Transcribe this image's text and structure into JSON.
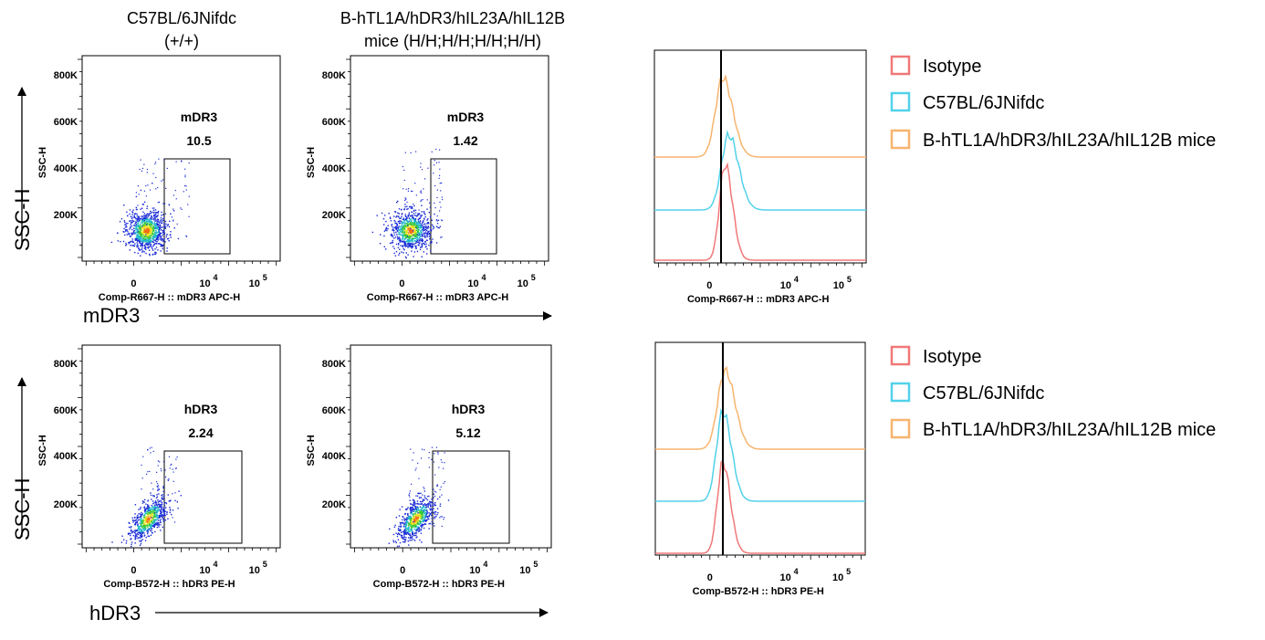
{
  "header": {
    "col1_line1": "C57BL/6JNifdc",
    "col1_line2": "(+/+)",
    "col2_line1": "B-hTL1A/hDR3/hIL23A/hIL12B",
    "col2_line2": "mice (H/H;H/H;H/H;H/H)"
  },
  "arrows": {
    "row1_y_label": "SSC-H",
    "row1_x_label": "mDR3",
    "row2_y_label": "SSC-H",
    "row2_x_label": "hDR3"
  },
  "colors": {
    "isotype": "#f07878",
    "wt": "#52d1ea",
    "humanized": "#f7b46e"
  },
  "chart_data": [
    {
      "type": "scatter",
      "panel": "row1-wt",
      "ylabel": "SSC-H",
      "xlabel": "Comp-R667-H :: mDR3 APC-H",
      "yticks": [
        "800K",
        "600K",
        "400K",
        "200K"
      ],
      "xticks": [
        "0",
        "10",
        "10"
      ],
      "xtick_exponents": [
        "",
        "4",
        "5"
      ],
      "gate": {
        "label": "mDR3",
        "percent": "10.5"
      },
      "density": "center near 0, 100K"
    },
    {
      "type": "scatter",
      "panel": "row1-humanized",
      "ylabel": "SSC-H",
      "xlabel": "Comp-R667-H :: mDR3 APC-H",
      "yticks": [
        "800K",
        "600K",
        "400K",
        "200K"
      ],
      "xticks": [
        "0",
        "10",
        "10"
      ],
      "xtick_exponents": [
        "",
        "4",
        "5"
      ],
      "gate": {
        "label": "mDR3",
        "percent": "1.42"
      }
    },
    {
      "type": "line",
      "panel": "row1-histogram",
      "xlabel": "Comp-R667-H :: mDR3 APC-H",
      "xticks": [
        "0",
        "10",
        "10"
      ],
      "xtick_exponents": [
        "",
        "4",
        "5"
      ],
      "legend": [
        "Isotype",
        "C57BL/6JNifdc",
        "B-hTL1A/hDR3/hIL23A/hIL12B mice"
      ],
      "legend_position": "right",
      "series": [
        {
          "name": "Isotype",
          "peak_offset": 0.3
        },
        {
          "name": "C57BL/6JNifdc",
          "peak_offset": 0.8
        },
        {
          "name": "B-hTL1A/hDR3/hIL23A/hIL12B mice",
          "peak_offset": 0.0
        }
      ]
    },
    {
      "type": "scatter",
      "panel": "row2-wt",
      "ylabel": "SSC-H",
      "xlabel": "Comp-B572-H :: hDR3 PE-H",
      "yticks": [
        "800K",
        "600K",
        "400K",
        "200K"
      ],
      "xticks": [
        "0",
        "10",
        "10"
      ],
      "xtick_exponents": [
        "",
        "4",
        "5"
      ],
      "gate": {
        "label": "hDR3",
        "percent": "2.24"
      }
    },
    {
      "type": "scatter",
      "panel": "row2-humanized",
      "ylabel": "SSC-H",
      "xlabel": "Comp-B572-H :: hDR3 PE-H",
      "yticks": [
        "800K",
        "600K",
        "400K",
        "200K"
      ],
      "xticks": [
        "0",
        "10",
        "10"
      ],
      "xtick_exponents": [
        "",
        "4",
        "5"
      ],
      "gate": {
        "label": "hDR3",
        "percent": "5.12"
      }
    },
    {
      "type": "line",
      "panel": "row2-histogram",
      "xlabel": "Comp-B572-H :: hDR3 PE-H",
      "xticks": [
        "0",
        "10",
        "10"
      ],
      "xtick_exponents": [
        "",
        "4",
        "5"
      ],
      "legend": [
        "Isotype",
        "C57BL/6JNifdc",
        "B-hTL1A/hDR3/hIL23A/hIL12B mice"
      ],
      "legend_position": "right",
      "series": [
        {
          "name": "Isotype",
          "peak_offset": 0.0
        },
        {
          "name": "C57BL/6JNifdc",
          "peak_offset": 0.0
        },
        {
          "name": "B-hTL1A/hDR3/hIL23A/hIL12B mice",
          "peak_offset": 0.3
        }
      ]
    }
  ]
}
